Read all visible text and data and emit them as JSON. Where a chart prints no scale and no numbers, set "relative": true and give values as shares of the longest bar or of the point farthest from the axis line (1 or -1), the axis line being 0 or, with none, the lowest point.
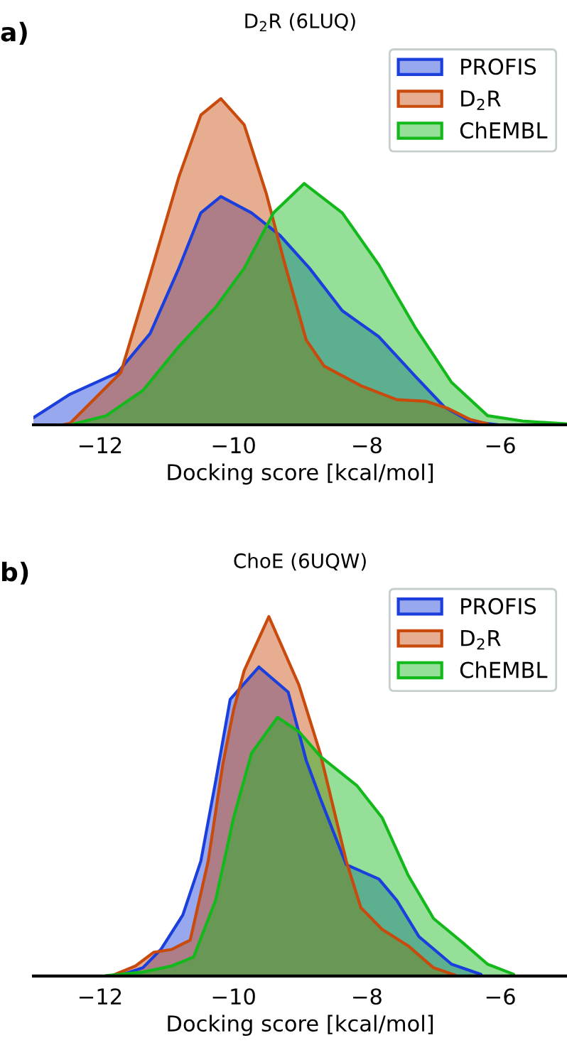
{
  "chart_data": [
    {
      "type": "area",
      "title": "D$_{2}$R (6LUQ)",
      "xlabel": "Docking score [kcal/mol]",
      "annotations": [
        "a)"
      ],
      "relative": true,
      "xlim": [
        -13,
        -5
      ],
      "xticks": [
        {
          "value": -12,
          "label": "−12"
        },
        {
          "value": -10,
          "label": "−10"
        },
        {
          "value": -8,
          "label": "−8"
        },
        {
          "value": -6,
          "label": "−6"
        }
      ],
      "grid": false,
      "legend": "top right",
      "tick_labels": "x",
      "series": [
        {
          "name": "PROFIS",
          "color": "#1a3fdc",
          "x": [
            -13.0,
            -12.45,
            -11.74,
            -11.25,
            -10.82,
            -10.49,
            -10.19,
            -9.73,
            -9.3,
            -8.86,
            -8.37,
            -7.82,
            -7.28,
            -6.84,
            -6.46,
            -6.02
          ],
          "values": [
            0.022,
            0.094,
            0.16,
            0.28,
            0.48,
            0.65,
            0.7,
            0.65,
            0.58,
            0.48,
            0.35,
            0.27,
            0.15,
            0.055,
            0.011,
            0.0
          ]
        },
        {
          "name": "D$_{2}$R",
          "color": "#c84a0c",
          "x": [
            -12.56,
            -12.45,
            -11.69,
            -11.25,
            -10.82,
            -10.49,
            -10.19,
            -9.84,
            -9.51,
            -9.24,
            -8.91,
            -8.64,
            -8.09,
            -7.55,
            -7.11,
            -6.78,
            -6.46,
            -6.19
          ],
          "values": [
            0.0,
            0.005,
            0.16,
            0.46,
            0.76,
            0.95,
            1.0,
            0.92,
            0.71,
            0.5,
            0.26,
            0.18,
            0.12,
            0.077,
            0.072,
            0.05,
            0.017,
            0.003
          ]
        },
        {
          "name": "ChEMBL",
          "color": "#13b81b",
          "x": [
            -12.45,
            -11.91,
            -11.36,
            -10.82,
            -10.27,
            -9.84,
            -9.4,
            -8.94,
            -8.37,
            -7.82,
            -7.28,
            -6.73,
            -6.19,
            -5.64,
            -5.01
          ],
          "values": [
            0.0,
            0.028,
            0.105,
            0.24,
            0.36,
            0.48,
            0.65,
            0.74,
            0.65,
            0.49,
            0.3,
            0.13,
            0.028,
            0.011,
            0.003
          ]
        }
      ]
    },
    {
      "type": "area",
      "title": "ChoE (6UQW)",
      "xlabel": "Docking score [kcal/mol]",
      "annotations": [
        "b)"
      ],
      "relative": true,
      "xlim": [
        -13,
        -5
      ],
      "xticks": [
        {
          "value": -12,
          "label": "−12"
        },
        {
          "value": -10,
          "label": "−10"
        },
        {
          "value": -8,
          "label": "−8"
        },
        {
          "value": -6,
          "label": "−6"
        }
      ],
      "grid": false,
      "legend": "top right",
      "tick_labels": "x",
      "series": [
        {
          "name": "PROFIS",
          "color": "#1a3fdc",
          "x": [
            -11.69,
            -11.36,
            -11.09,
            -10.76,
            -10.49,
            -10.27,
            -10.05,
            -9.62,
            -9.18,
            -8.91,
            -8.69,
            -8.31,
            -7.82,
            -7.55,
            -7.22,
            -6.73,
            -6.29
          ],
          "values": [
            0.003,
            0.023,
            0.074,
            0.17,
            0.32,
            0.54,
            0.77,
            0.86,
            0.79,
            0.6,
            0.49,
            0.31,
            0.27,
            0.21,
            0.11,
            0.033,
            0.005
          ]
        },
        {
          "name": "D$_{2}$R",
          "color": "#c84a0c",
          "x": [
            -11.8,
            -11.47,
            -11.2,
            -10.93,
            -10.65,
            -10.38,
            -10.16,
            -10.0,
            -9.84,
            -9.47,
            -9.02,
            -8.7,
            -8.31,
            -8.09,
            -7.77,
            -7.38,
            -7.0,
            -6.68
          ],
          "values": [
            0.003,
            0.028,
            0.066,
            0.074,
            0.1,
            0.32,
            0.59,
            0.74,
            0.85,
            1.0,
            0.81,
            0.62,
            0.32,
            0.19,
            0.13,
            0.084,
            0.023,
            0.003
          ]
        },
        {
          "name": "ChEMBL",
          "color": "#13b81b",
          "x": [
            -11.91,
            -11.36,
            -10.93,
            -10.6,
            -10.27,
            -10.0,
            -9.73,
            -9.34,
            -9.02,
            -8.69,
            -8.15,
            -7.77,
            -7.38,
            -7.0,
            -6.57,
            -6.19,
            -5.8
          ],
          "values": [
            0.001,
            0.011,
            0.028,
            0.053,
            0.21,
            0.44,
            0.62,
            0.72,
            0.68,
            0.61,
            0.53,
            0.44,
            0.28,
            0.16,
            0.094,
            0.033,
            0.005
          ]
        }
      ]
    }
  ]
}
